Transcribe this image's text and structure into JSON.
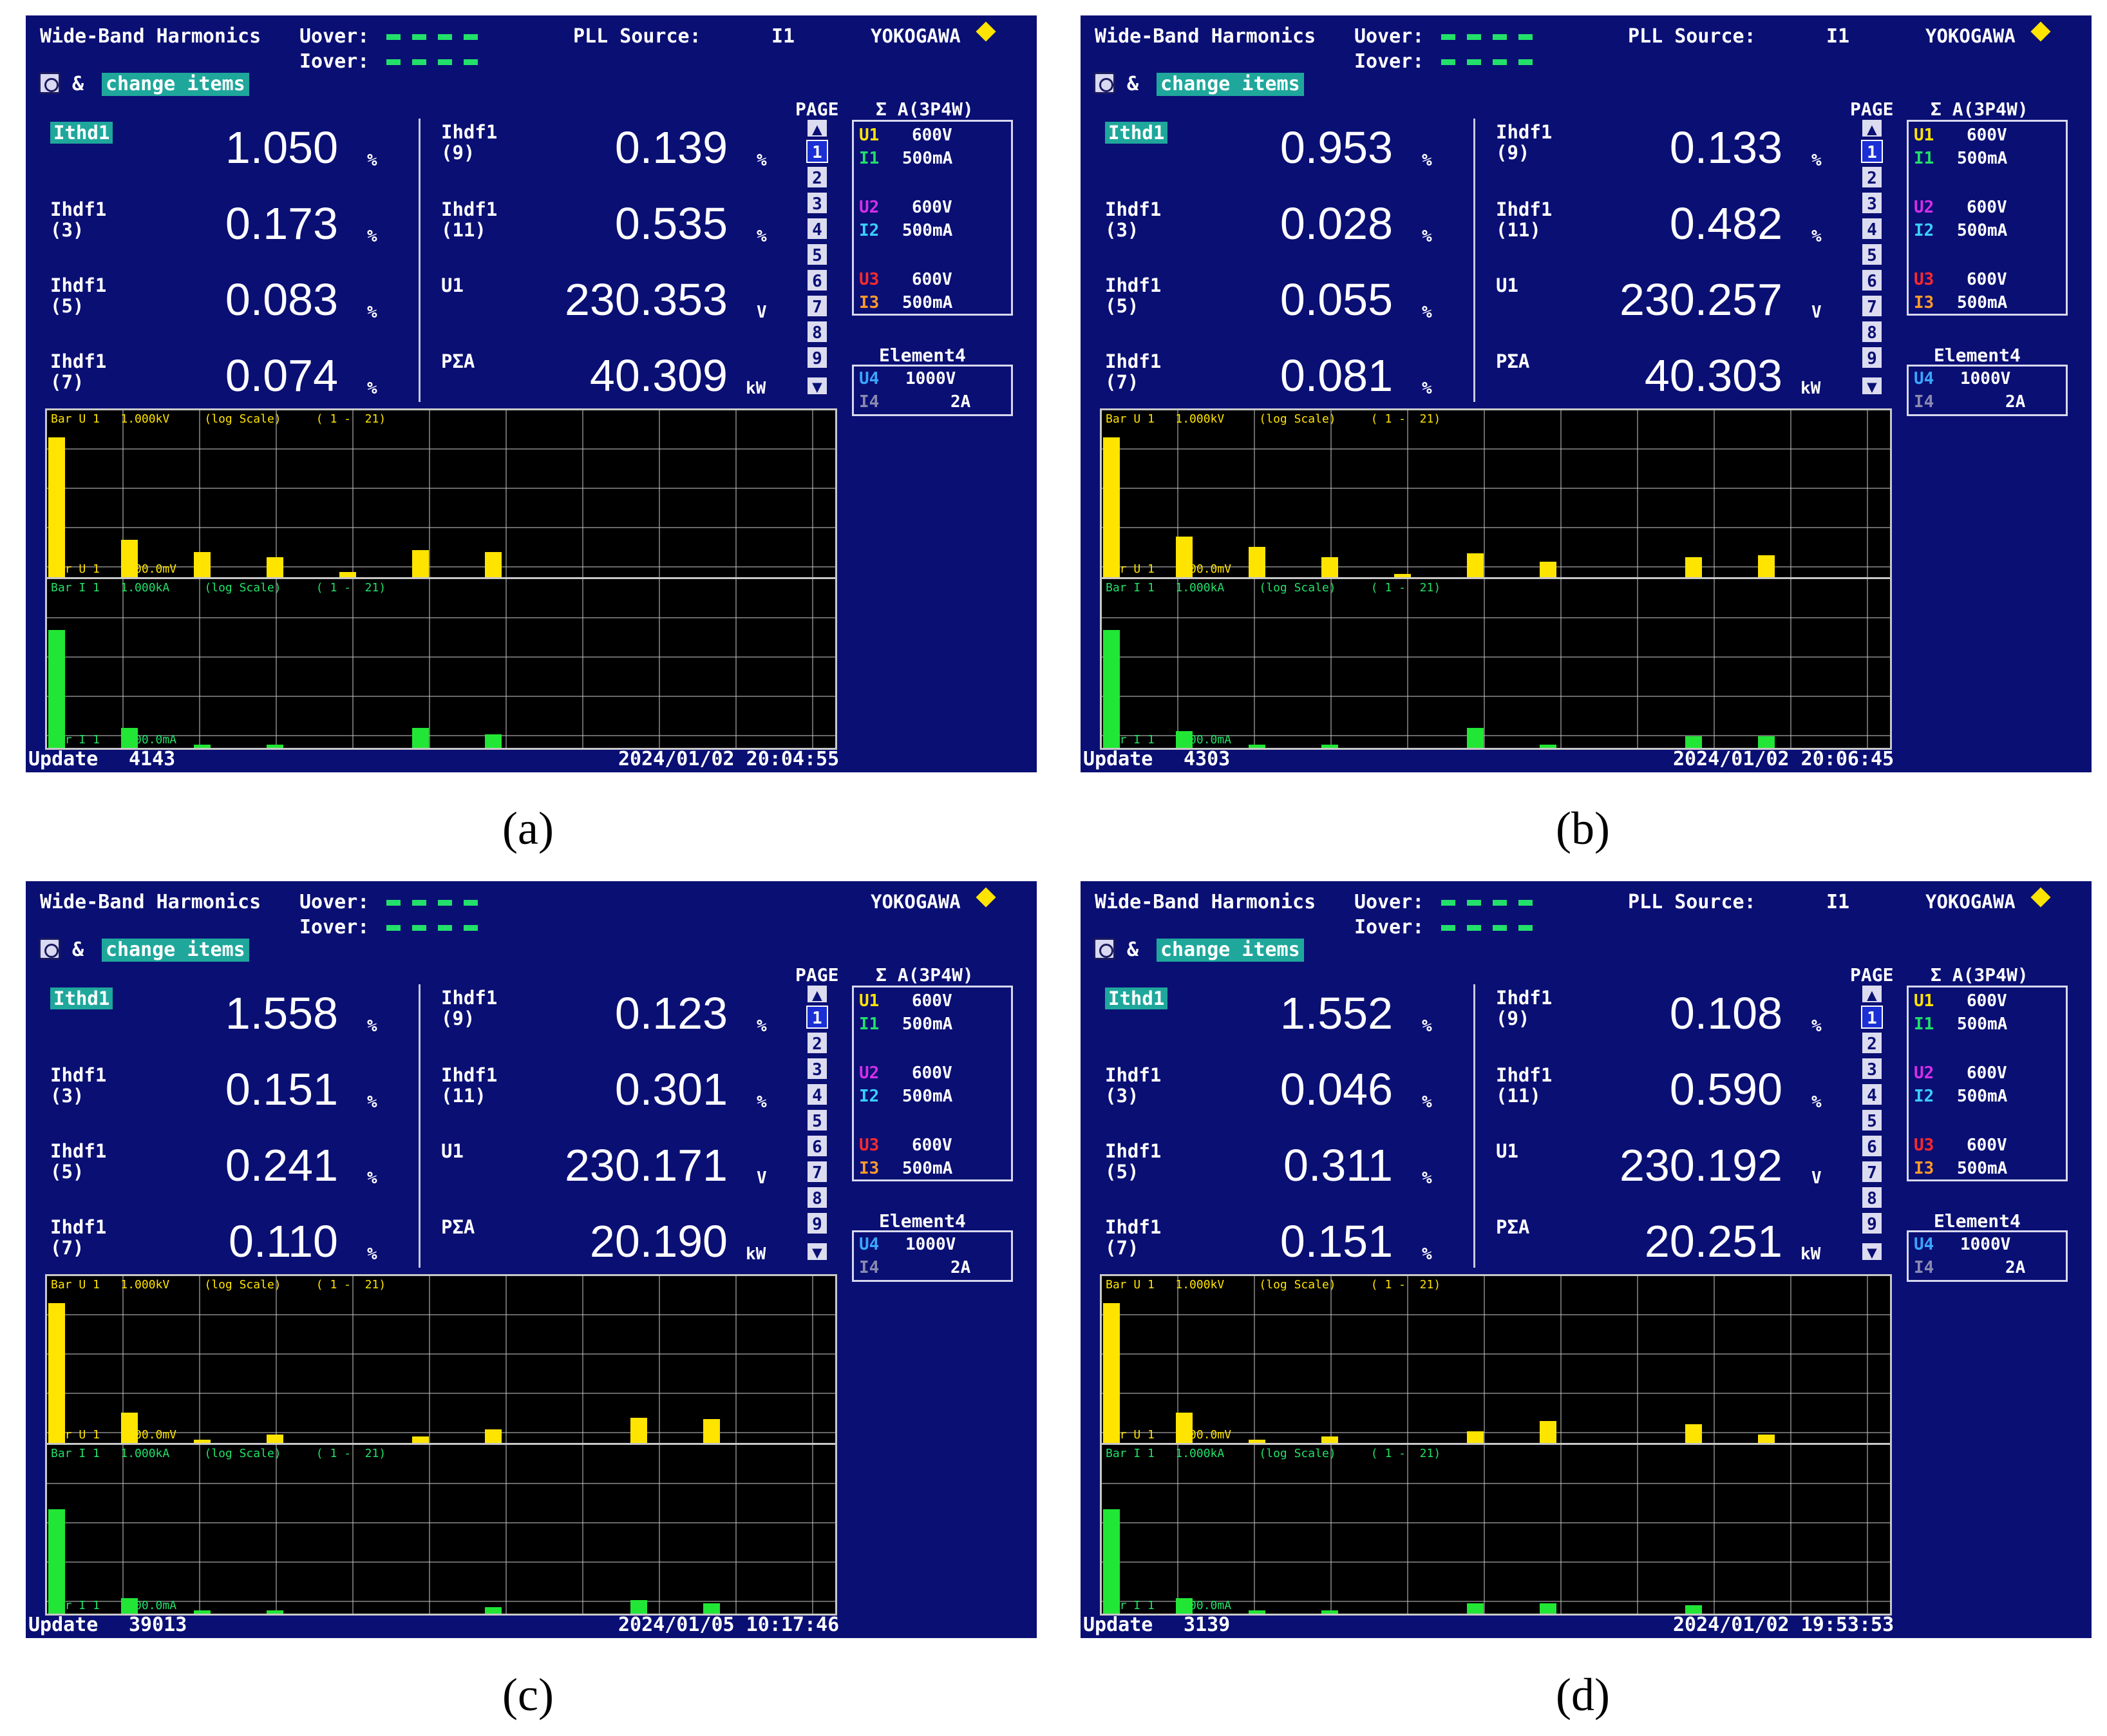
{
  "common": {
    "mode": "Wide-Band Harmonics",
    "uover_label": "Uover:",
    "iover_label": "Iover:",
    "pll_label": "PLL Source:",
    "pll_value": "I1",
    "brand": "YOKOGAWA",
    "change_prefix": "&",
    "change_items": "change items",
    "page_label": "PAGE",
    "page_numbers": [
      "1",
      "2",
      "3",
      "4",
      "5",
      "6",
      "7",
      "8",
      "9"
    ],
    "sigma_label": "Σ A(3P4W)",
    "ranges": [
      {
        "u": "U1",
        "u_range": "600V",
        "i": "I1",
        "i_range": "500mA"
      },
      {
        "u": "U2",
        "u_range": "600V",
        "i": "I2",
        "i_range": "500mA"
      },
      {
        "u": "U3",
        "u_range": "600V",
        "i": "I3",
        "i_range": "500mA"
      }
    ],
    "element4_label": "Element4",
    "element4": {
      "u": "U4",
      "u_range": "1000V",
      "i": "I4",
      "i_range": "2A"
    },
    "labels": {
      "ithd1": "Ithd1",
      "ihdf3": "Ihdf1\n(3)",
      "ihdf5": "Ihdf1\n(5)",
      "ihdf7": "Ihdf1\n(7)",
      "ihdf9": "Ihdf1\n(9)",
      "ihdf11": "Ihdf1\n(11)",
      "u1": "U1",
      "psa": "PΣA"
    },
    "units": {
      "pct": "%",
      "volt": "V",
      "kw": "kW"
    },
    "chart_u_label": "Bar U 1   1.000kV     (log Scale)     ( 1 -  21)",
    "chart_i_label": "Bar I 1   1.000kA     (log Scale)     ( 1 -  21)",
    "chart_u_foot": "Bar U 1    100.0mV",
    "chart_i_foot": "Bar I 1    100.0mA",
    "update_label": "Update"
  },
  "panels": [
    {
      "caption": "(a)",
      "show_pll": true,
      "ithd1": "1.050",
      "ihdf3": "0.173",
      "ihdf5": "0.083",
      "ihdf7": "0.074",
      "ihdf9": "0.139",
      "ihdf11": "0.535",
      "u1": "230.353",
      "psa": "40.309",
      "update": "4143",
      "datetime": "2024/01/02 20:04:55",
      "chart_data": {
        "type": "bar",
        "x": [
          1,
          3,
          5,
          7,
          9,
          11,
          13
        ],
        "u_levels": [
          0.83,
          0.22,
          0.15,
          0.12,
          0.03,
          0.16,
          0.15
        ],
        "i_levels": [
          0.7,
          0.12,
          0.02,
          0.02,
          0.0,
          0.12,
          0.08
        ]
      }
    },
    {
      "caption": "(b)",
      "show_pll": true,
      "ithd1": "0.953",
      "ihdf3": "0.028",
      "ihdf5": "0.055",
      "ihdf7": "0.081",
      "ihdf9": "0.133",
      "ihdf11": "0.482",
      "u1": "230.257",
      "psa": "40.303",
      "update": "4303",
      "datetime": "2024/01/02 20:06:45",
      "chart_data": {
        "type": "bar",
        "x": [
          1,
          3,
          5,
          7,
          9,
          11,
          13,
          17,
          19
        ],
        "u_levels": [
          0.83,
          0.24,
          0.18,
          0.12,
          0.02,
          0.14,
          0.09,
          0.12,
          0.13
        ],
        "i_levels": [
          0.7,
          0.1,
          0.02,
          0.02,
          0.0,
          0.12,
          0.02,
          0.07,
          0.07
        ]
      }
    },
    {
      "caption": "(c)",
      "show_pll": false,
      "ithd1": "1.558",
      "ihdf3": "0.151",
      "ihdf5": "0.241",
      "ihdf7": "0.110",
      "ihdf9": "0.123",
      "ihdf11": "0.301",
      "u1": "230.171",
      "psa": "20.190",
      "update": "39013",
      "datetime": "2024/01/05 10:17:46",
      "chart_data": {
        "type": "bar",
        "x": [
          1,
          3,
          5,
          7,
          9,
          11,
          13,
          17,
          19
        ],
        "u_levels": [
          0.83,
          0.18,
          0.02,
          0.05,
          0.0,
          0.04,
          0.08,
          0.15,
          0.14
        ],
        "i_levels": [
          0.62,
          0.09,
          0.02,
          0.02,
          0.0,
          0.0,
          0.04,
          0.08,
          0.06
        ]
      }
    },
    {
      "caption": "(d)",
      "show_pll": true,
      "ithd1": "1.552",
      "ihdf3": "0.046",
      "ihdf5": "0.311",
      "ihdf7": "0.151",
      "ihdf9": "0.108",
      "ihdf11": "0.590",
      "u1": "230.192",
      "psa": "20.251",
      "update": "3139",
      "datetime": "2024/01/02 19:53:53",
      "chart_data": {
        "type": "bar",
        "x": [
          1,
          3,
          5,
          7,
          9,
          11,
          13,
          17,
          19
        ],
        "u_levels": [
          0.83,
          0.18,
          0.02,
          0.04,
          0.0,
          0.07,
          0.13,
          0.11,
          0.05
        ],
        "i_levels": [
          0.62,
          0.09,
          0.02,
          0.02,
          0.0,
          0.06,
          0.06,
          0.05,
          0.0
        ]
      }
    }
  ]
}
